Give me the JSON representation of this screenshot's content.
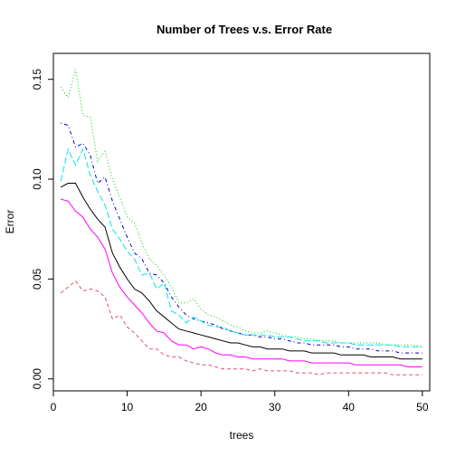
{
  "chart_data": {
    "type": "line",
    "title": "Number of Trees v.s. Error Rate",
    "xlabel": "trees",
    "ylabel": "Error",
    "xlim": [
      0,
      51
    ],
    "ylim": [
      -0.006,
      0.163
    ],
    "x_ticks": [
      0,
      10,
      20,
      30,
      40,
      50
    ],
    "x_tick_labels": [
      "0",
      "10",
      "20",
      "30",
      "40",
      "50"
    ],
    "y_ticks": [
      0.0,
      0.05,
      0.1,
      0.15
    ],
    "y_tick_labels": [
      "0.00",
      "0.05",
      "0.10",
      "0.15"
    ],
    "grid": false,
    "legend": "none",
    "x": [
      1,
      2,
      3,
      4,
      5,
      6,
      7,
      8,
      9,
      10,
      11,
      12,
      13,
      14,
      15,
      16,
      17,
      18,
      19,
      20,
      21,
      22,
      23,
      24,
      25,
      26,
      27,
      28,
      29,
      30,
      31,
      32,
      33,
      34,
      35,
      36,
      37,
      38,
      39,
      40,
      41,
      42,
      43,
      44,
      45,
      46,
      47,
      48,
      49,
      50
    ],
    "series": [
      {
        "color": "#000000",
        "dash": "solid",
        "values": [
          0.096,
          0.098,
          0.098,
          0.091,
          0.085,
          0.08,
          0.076,
          0.063,
          0.056,
          0.05,
          0.045,
          0.043,
          0.039,
          0.034,
          0.031,
          0.028,
          0.025,
          0.024,
          0.023,
          0.022,
          0.021,
          0.02,
          0.019,
          0.018,
          0.018,
          0.017,
          0.016,
          0.016,
          0.015,
          0.015,
          0.015,
          0.014,
          0.014,
          0.014,
          0.013,
          0.013,
          0.013,
          0.013,
          0.012,
          0.012,
          0.012,
          0.012,
          0.011,
          0.011,
          0.011,
          0.011,
          0.01,
          0.01,
          0.01,
          0.01
        ]
      },
      {
        "color": "#DF536B",
        "dash": "dashed",
        "values": [
          0.043,
          0.046,
          0.049,
          0.044,
          0.045,
          0.044,
          0.041,
          0.03,
          0.032,
          0.026,
          0.023,
          0.019,
          0.015,
          0.015,
          0.012,
          0.011,
          0.011,
          0.009,
          0.008,
          0.007,
          0.007,
          0.006,
          0.005,
          0.005,
          0.005,
          0.005,
          0.004,
          0.005,
          0.004,
          0.004,
          0.004,
          0.004,
          0.003,
          0.003,
          0.003,
          0.002,
          0.003,
          0.003,
          0.003,
          0.003,
          0.003,
          0.003,
          0.003,
          0.003,
          0.003,
          0.002,
          0.002,
          0.002,
          0.002,
          0.002
        ]
      },
      {
        "color": "#00CD00",
        "dash": "dotted",
        "values": [
          0.146,
          0.141,
          0.155,
          0.132,
          0.131,
          0.109,
          0.114,
          0.1,
          0.091,
          0.081,
          0.078,
          0.068,
          0.06,
          0.057,
          0.052,
          0.046,
          0.038,
          0.038,
          0.04,
          0.035,
          0.032,
          0.031,
          0.029,
          0.027,
          0.026,
          0.024,
          0.023,
          0.023,
          0.024,
          0.023,
          0.022,
          0.021,
          0.021,
          0.02,
          0.02,
          0.019,
          0.019,
          0.019,
          0.018,
          0.018,
          0.018,
          0.018,
          0.018,
          0.018,
          0.017,
          0.017,
          0.017,
          0.017,
          0.017,
          0.016
        ]
      },
      {
        "color": "#0000CD",
        "dash": "dotdash",
        "values": [
          0.128,
          0.127,
          0.116,
          0.118,
          0.112,
          0.098,
          0.101,
          0.089,
          0.08,
          0.071,
          0.063,
          0.06,
          0.053,
          0.052,
          0.048,
          0.041,
          0.036,
          0.032,
          0.03,
          0.029,
          0.028,
          0.027,
          0.025,
          0.024,
          0.023,
          0.022,
          0.022,
          0.021,
          0.021,
          0.02,
          0.02,
          0.019,
          0.018,
          0.018,
          0.017,
          0.017,
          0.017,
          0.017,
          0.016,
          0.016,
          0.015,
          0.015,
          0.015,
          0.014,
          0.014,
          0.014,
          0.013,
          0.013,
          0.013,
          0.013
        ]
      },
      {
        "color": "#00E5EE",
        "dash": "longdash",
        "values": [
          0.099,
          0.115,
          0.107,
          0.115,
          0.102,
          0.094,
          0.087,
          0.075,
          0.07,
          0.064,
          0.06,
          0.052,
          0.053,
          0.045,
          0.048,
          0.034,
          0.032,
          0.028,
          0.031,
          0.029,
          0.027,
          0.026,
          0.026,
          0.024,
          0.023,
          0.022,
          0.022,
          0.022,
          0.022,
          0.021,
          0.021,
          0.021,
          0.02,
          0.019,
          0.019,
          0.019,
          0.018,
          0.018,
          0.018,
          0.018,
          0.017,
          0.017,
          0.017,
          0.017,
          0.017,
          0.017,
          0.016,
          0.016,
          0.016,
          0.016
        ]
      },
      {
        "color": "#FF00FF",
        "dash": "solid",
        "values": [
          0.09,
          0.089,
          0.084,
          0.081,
          0.075,
          0.071,
          0.065,
          0.053,
          0.046,
          0.041,
          0.037,
          0.033,
          0.028,
          0.024,
          0.023,
          0.019,
          0.017,
          0.017,
          0.015,
          0.016,
          0.015,
          0.013,
          0.012,
          0.012,
          0.011,
          0.011,
          0.01,
          0.01,
          0.01,
          0.01,
          0.01,
          0.009,
          0.009,
          0.009,
          0.008,
          0.008,
          0.008,
          0.008,
          0.008,
          0.008,
          0.007,
          0.007,
          0.007,
          0.007,
          0.007,
          0.007,
          0.007,
          0.006,
          0.006,
          0.006
        ]
      }
    ]
  }
}
